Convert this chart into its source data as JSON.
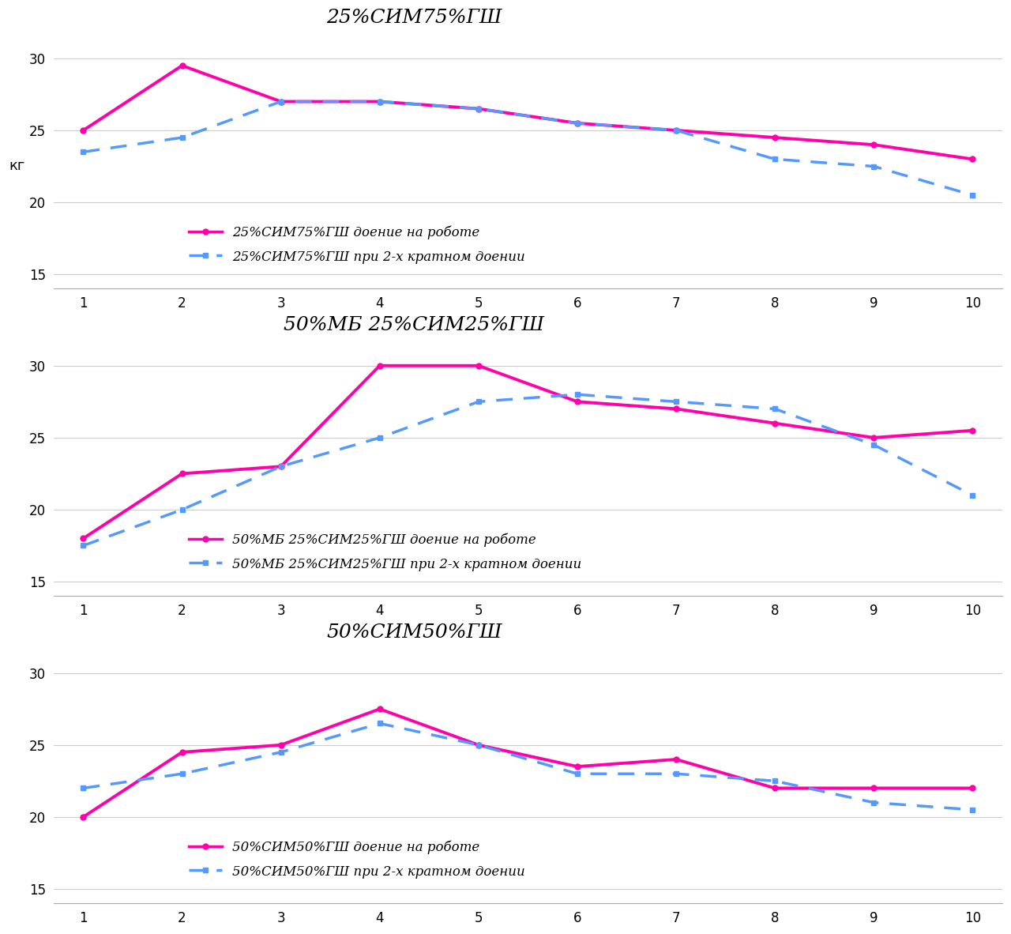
{
  "charts": [
    {
      "title": "25%СИМ75%ГШ",
      "robot_label": "25%СИМ75%ГШ доение на роботе",
      "manual_label": "25%СИМ75%ГШ при 2-х кратном доении",
      "robot_y": [
        25,
        29.5,
        27,
        27,
        26.5,
        25.5,
        25,
        24.5,
        24,
        23
      ],
      "manual_y": [
        23.5,
        24.5,
        27,
        27,
        26.5,
        25.5,
        25,
        23,
        22.5,
        20.5
      ],
      "ylim": [
        14,
        32
      ],
      "yticks": [
        15,
        20,
        25,
        30
      ]
    },
    {
      "title": "50%МБ 25%СИМ25%ГШ",
      "robot_label": "50%МБ 25%СИМ25%ГШ доение на роботе",
      "manual_label": "50%МБ 25%СИМ25%ГШ при 2-х кратном доении",
      "robot_y": [
        18,
        22.5,
        23,
        30,
        30,
        27.5,
        27,
        26,
        25,
        25.5
      ],
      "manual_y": [
        17.5,
        20,
        23,
        25,
        27.5,
        28,
        27.5,
        27,
        24.5,
        21
      ],
      "ylim": [
        14,
        32
      ],
      "yticks": [
        15,
        20,
        25,
        30
      ]
    },
    {
      "title": "50%СИМ50%ГШ",
      "robot_label": "50%СИМ50%ГШ доение на роботе",
      "manual_label": "50%СИМ50%ГШ при 2-х кратном доении",
      "robot_y": [
        20,
        24.5,
        25,
        27.5,
        25,
        23.5,
        24,
        22,
        22,
        22
      ],
      "manual_y": [
        22,
        23,
        24.5,
        26.5,
        25,
        23,
        23,
        22.5,
        21,
        20.5
      ],
      "ylim": [
        14,
        32
      ],
      "yticks": [
        15,
        20,
        25,
        30
      ]
    }
  ],
  "x": [
    1,
    2,
    3,
    4,
    5,
    6,
    7,
    8,
    9,
    10
  ],
  "robot_color": "#FF00AA",
  "manual_color": "#5599FF",
  "robot_linewidth": 2.8,
  "manual_linewidth": 2.5,
  "ylabel": "кг",
  "background_color": "#FFFFFF",
  "grid_color": "#CCCCCC"
}
